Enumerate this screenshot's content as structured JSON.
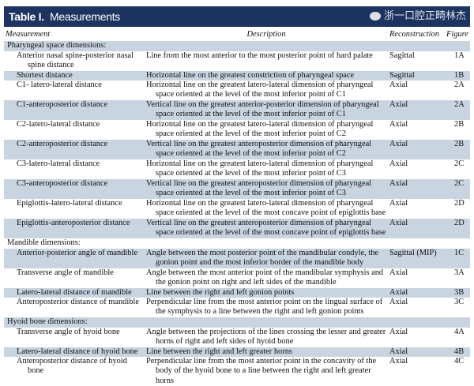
{
  "title": {
    "label": "Table I.",
    "text": "Measurements"
  },
  "headers": [
    "Measurement",
    "Description",
    "Reconstruction",
    "Figure"
  ],
  "rows": [
    {
      "type": "section",
      "measurement": "Pharyngeal space dimensions:",
      "shade": true
    },
    {
      "measurement": "Anterior nasal spine-posterior nasal spine distance",
      "description": "Line from the most anterior to the most posterior point of hard palate",
      "reconstruction": "Sagittal",
      "figure": "1A",
      "shade": false,
      "lines": 2
    },
    {
      "measurement": "Shortest distance",
      "description": "Horizontal line on the greatest constriction of pharyngeal space",
      "reconstruction": "Sagittal",
      "figure": "1B",
      "shade": true,
      "lines": 1
    },
    {
      "measurement": "C1- latero-lateral distance",
      "description": "Horizontal line on the greatest latero-lateral dimension of pharyngeal space oriented at the level of the most inferior point of C1",
      "reconstruction": "Axial",
      "figure": "2A",
      "shade": false,
      "lines": 2
    },
    {
      "measurement": "C1-anteroposterior distance",
      "description": "Vertical line on the greatest anterior-posterior dimension of pharyngeal space oriented at the level of the most inferior point of C1",
      "reconstruction": "Axial",
      "figure": "2A",
      "shade": true,
      "lines": 2
    },
    {
      "measurement": "C2-latero-lateral distance",
      "description": "Horizontal line on the greatest latero-lateral dimension of pharyngeal space oriented at the level of the most inferior point of C2",
      "reconstruction": "Axial",
      "figure": "2B",
      "shade": false,
      "lines": 2
    },
    {
      "measurement": "C2-anteroposterior distance",
      "description": "Vertical line on the greatest anteroposterior dimension of pharyngeal space oriented at the level of the most inferior point of C2",
      "reconstruction": "Axial",
      "figure": "2B",
      "shade": true,
      "lines": 2
    },
    {
      "measurement": "C3-latero-lateral distance",
      "description": "Horizontal line on the greatest latero-lateral dimension of pharyngeal space oriented at the level of the most inferior point of C3",
      "reconstruction": "Axial",
      "figure": "2C",
      "shade": false,
      "lines": 2
    },
    {
      "measurement": "C3-anteroposterior distance",
      "description": "Vertical line on the greatest anteroposterior dimension of pharyngeal space oriented at the level of the most inferior point of C3",
      "reconstruction": "Axial",
      "figure": "2C",
      "shade": true,
      "lines": 2
    },
    {
      "measurement": "Epiglottis-latero-lateral distance",
      "description": "Horizontal line on the greatest latero-lateral dimension of pharyngeal space oriented at the level of the most concave point of epiglottis base",
      "reconstruction": "Axial",
      "figure": "2D",
      "shade": false,
      "lines": 2
    },
    {
      "measurement": "Epiglottis-anteroposterior distance",
      "description": "Vertical line on the greatest anteroposterior dimension of pharyngeal space oriented at the level of the most concave point of epiglottis base",
      "reconstruction": "Axial",
      "figure": "2D",
      "shade": true,
      "lines": 2
    },
    {
      "type": "section",
      "measurement": "Mandible dimensions:",
      "shade": false
    },
    {
      "measurement": "Anterior-posterior angle of mandible",
      "description": "Angle between the most posterior point of the mandibular condyle, the gonion point and the most inferior border of the mandible body",
      "reconstruction": "Sagittal (MIP)",
      "figure": "1C",
      "shade": true,
      "lines": 2
    },
    {
      "measurement": "Transverse angle of mandible",
      "description": "Angle between the most anterior point of the mandibular symphysis and the gonion point on right and left sides of the mandible",
      "reconstruction": "Axial",
      "figure": "3A",
      "shade": false,
      "lines": 2
    },
    {
      "measurement": "Latero-lateral distance of mandible",
      "description": "Line between the right and left gonion points",
      "reconstruction": "Axial",
      "figure": "3B",
      "shade": true,
      "lines": 1
    },
    {
      "measurement": "Anteroposterior distance of mandible",
      "description": "Perpendicular line from the most anterior point on the lingual surface of the symphysis to a line between the right and left gonion points",
      "reconstruction": "Axial",
      "figure": "3C",
      "shade": false,
      "lines": 2
    },
    {
      "type": "section",
      "measurement": "Hyoid bone dimensions:",
      "shade": true
    },
    {
      "measurement": "Transverse angle of hyoid bone",
      "description": "Angle between the projections of the lines crossing the lesser and greater horns of right and left sides of hyoid bone",
      "reconstruction": "Axial",
      "figure": "4A",
      "shade": false,
      "lines": 2
    },
    {
      "measurement": "Latero-lateral distance of hyoid bone",
      "description": "Line between the right and left greater horns",
      "reconstruction": "Axial",
      "figure": "4B",
      "shade": true,
      "lines": 1
    },
    {
      "measurement": "Anteroposterior distance of hyoid bone",
      "description": "Perpendicular line from the most anterior point in the concavity of the body of the hyoid bone to a line between the right and left greater horns",
      "reconstruction": "Axial",
      "figure": "4C",
      "shade": false,
      "lines": 2
    }
  ],
  "watermark": "浙一口腔正畸林杰",
  "colors": {
    "banner": "#1d3461",
    "row_shade": "#c9d4e1"
  }
}
